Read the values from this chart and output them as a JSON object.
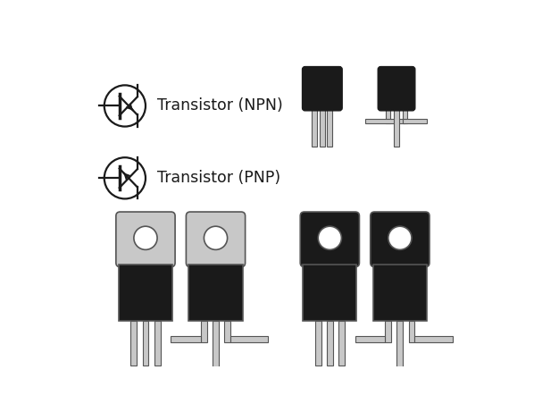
{
  "bg_color": "#ffffff",
  "dark_color": "#1a1a1a",
  "gray_color": "#aaaaaa",
  "light_gray": "#c8c8c8",
  "outline_color": "#555555",
  "text_npn": "Transistor (NPN)",
  "text_pnp": "Transistor (PNP)",
  "text_color": "#1a1a1a",
  "text_fontsize": 12.5
}
